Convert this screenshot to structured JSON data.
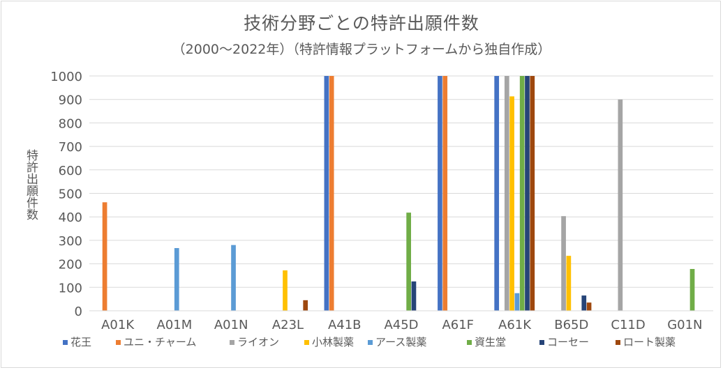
{
  "chart_data": {
    "type": "bar",
    "title": "技術分野ごとの特許出願件数",
    "subtitle": "（2000～2022年）（特許情報プラットフォームから独自作成）",
    "ylabel": "特許出願件数",
    "xlabel": "",
    "ylim": [
      0,
      1000
    ],
    "yticks": [
      0,
      100,
      200,
      300,
      400,
      500,
      600,
      700,
      800,
      900,
      1000
    ],
    "grid": true,
    "legend_position": "bottom",
    "categories": [
      "A01K",
      "A01M",
      "A01N",
      "A23L",
      "A41B",
      "A45D",
      "A61F",
      "A61K",
      "B65D",
      "C11D",
      "G01N"
    ],
    "series": [
      {
        "name": "花王",
        "color": "#4472c4",
        "values": [
          0,
          0,
          0,
          0,
          1000,
          0,
          1000,
          1000,
          0,
          0,
          0
        ]
      },
      {
        "name": "ユニ・チャーム",
        "color": "#ed7d31",
        "values": [
          462,
          0,
          0,
          0,
          1000,
          0,
          1000,
          0,
          0,
          0,
          0
        ]
      },
      {
        "name": "ライオン",
        "color": "#a5a5a5",
        "values": [
          0,
          0,
          0,
          0,
          0,
          0,
          0,
          1000,
          403,
          900,
          0
        ]
      },
      {
        "name": "小林製薬",
        "color": "#ffc000",
        "values": [
          0,
          0,
          0,
          172,
          0,
          0,
          0,
          913,
          234,
          0,
          0
        ]
      },
      {
        "name": "アース製薬",
        "color": "#5b9bd5",
        "values": [
          0,
          267,
          280,
          0,
          0,
          0,
          0,
          75,
          0,
          0,
          0
        ]
      },
      {
        "name": "資生堂",
        "color": "#70ad47",
        "values": [
          0,
          0,
          0,
          0,
          0,
          418,
          0,
          1000,
          0,
          0,
          178
        ]
      },
      {
        "name": "コーセー",
        "color": "#264478",
        "values": [
          0,
          0,
          0,
          0,
          0,
          125,
          0,
          1000,
          65,
          0,
          0
        ]
      },
      {
        "name": "ロート製薬",
        "color": "#9e480e",
        "values": [
          0,
          0,
          0,
          45,
          0,
          0,
          0,
          1000,
          35,
          0,
          0
        ]
      }
    ]
  }
}
